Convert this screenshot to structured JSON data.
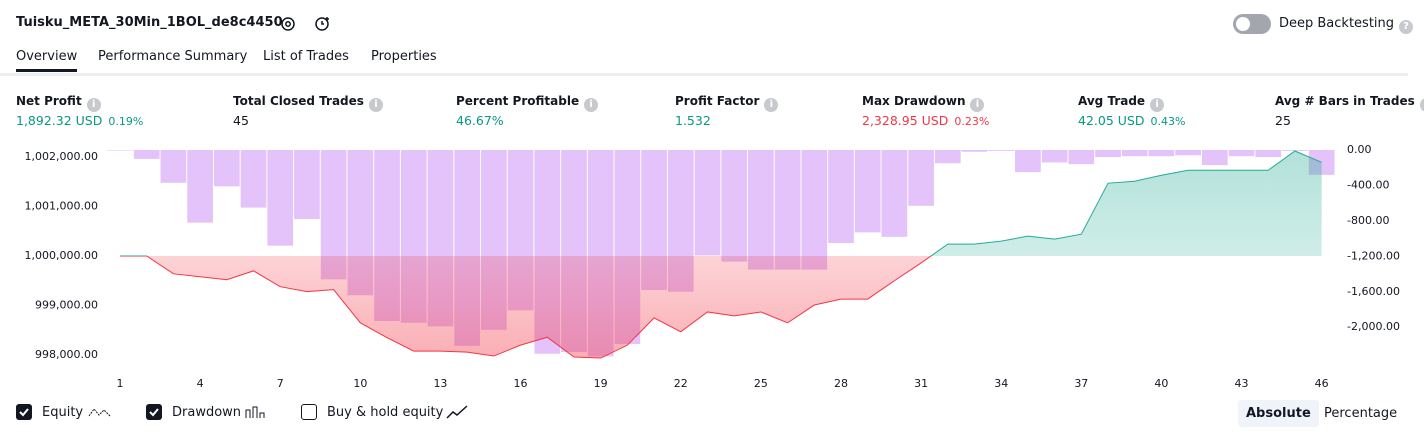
{
  "header": {
    "title": "Tuisku_META_30Min_1BOL_de8c4450",
    "toggle_label": "Deep Backtesting"
  },
  "tabs": [
    "Overview",
    "Performance Summary",
    "List of Trades",
    "Properties"
  ],
  "metrics": [
    {
      "label": "Net Profit",
      "value": "1,892.32 USD",
      "extra": "0.19%"
    },
    {
      "label": "Total Closed Trades",
      "value": "45"
    },
    {
      "label": "Percent Profitable",
      "value": "46.67%"
    },
    {
      "label": "Profit Factor",
      "value": "1.532"
    },
    {
      "label": "Max Drawdown",
      "value": "2,328.95 USD",
      "extra": "0.23%"
    },
    {
      "label": "Avg Trade",
      "value": "42.05 USD",
      "extra": "0.43%"
    },
    {
      "label": "Avg # Bars in Trades",
      "value": "25"
    }
  ],
  "chart_data": {
    "type": "combo",
    "x": [
      1,
      2,
      3,
      4,
      5,
      6,
      7,
      8,
      9,
      10,
      11,
      12,
      13,
      14,
      15,
      16,
      17,
      18,
      19,
      20,
      21,
      22,
      23,
      24,
      25,
      26,
      27,
      28,
      29,
      30,
      31,
      32,
      33,
      34,
      35,
      36,
      37,
      38,
      39,
      40,
      41,
      42,
      43,
      44,
      45,
      46
    ],
    "series": [
      {
        "name": "Equity",
        "type": "line",
        "axis": "y",
        "color": "#f23645",
        "color_above": "#22ab94",
        "values": [
          1000000,
          1000000,
          999640,
          999580,
          999520,
          999700,
          999380,
          999280,
          999320,
          998650,
          998350,
          998080,
          998080,
          998060,
          997980,
          998200,
          998360,
          997960,
          997940,
          998200,
          998750,
          998470,
          998870,
          998790,
          998870,
          998650,
          999010,
          999130,
          999130,
          999500,
          999860,
          1000240,
          1000240,
          1000300,
          1000400,
          1000340,
          1000440,
          1001470,
          1001510,
          1001630,
          1001730,
          1001730,
          1001730,
          1001730,
          1002120,
          1001892
        ]
      },
      {
        "name": "Drawdown",
        "type": "bar",
        "axis": "y2",
        "color": "#ba68f0",
        "values": [
          0,
          -100,
          -370,
          -820,
          -410,
          -650,
          -1080,
          -780,
          -1460,
          -1640,
          -1930,
          -1950,
          -1990,
          -2210,
          -2030,
          -1810,
          -2300,
          -2280,
          -2329,
          -2190,
          -1580,
          -1600,
          -1190,
          -1260,
          -1350,
          -1350,
          -1350,
          -1050,
          -930,
          -980,
          -630,
          -150,
          -20,
          -10,
          -250,
          -140,
          -160,
          -80,
          -70,
          -70,
          -60,
          -170,
          -70,
          -80,
          -10,
          -280
        ]
      }
    ],
    "xlim": [
      0.55,
      46.5
    ],
    "xticks": [
      1,
      4,
      7,
      10,
      13,
      16,
      19,
      22,
      25,
      28,
      31,
      34,
      37,
      40,
      43,
      46
    ],
    "ylim": [
      997900,
      1002140
    ],
    "yticks": [
      {
        "value": 998000,
        "label": "998,000.00"
      },
      {
        "value": 999000,
        "label": "999,000.00"
      },
      {
        "value": 1000000,
        "label": "1,000,000.00"
      },
      {
        "value": 1001000,
        "label": "1,001,000.00"
      },
      {
        "value": 1002000,
        "label": "1,002,000.00"
      }
    ],
    "y2lim": [
      -2370,
      0
    ],
    "y2ticks": [
      {
        "value": 0,
        "label": "0.00"
      },
      {
        "value": -400,
        "label": "-400.00"
      },
      {
        "value": -800,
        "label": "-800.00"
      },
      {
        "value": -1200,
        "label": "-1,200.00"
      },
      {
        "value": -1600,
        "label": "-1,600.00"
      },
      {
        "value": -2000,
        "label": "-2,000.00"
      }
    ],
    "grid": false
  },
  "footer": {
    "buy_hold_label": "Buy & hold equity",
    "buttons": [
      "Absolute",
      "Percentage"
    ]
  }
}
